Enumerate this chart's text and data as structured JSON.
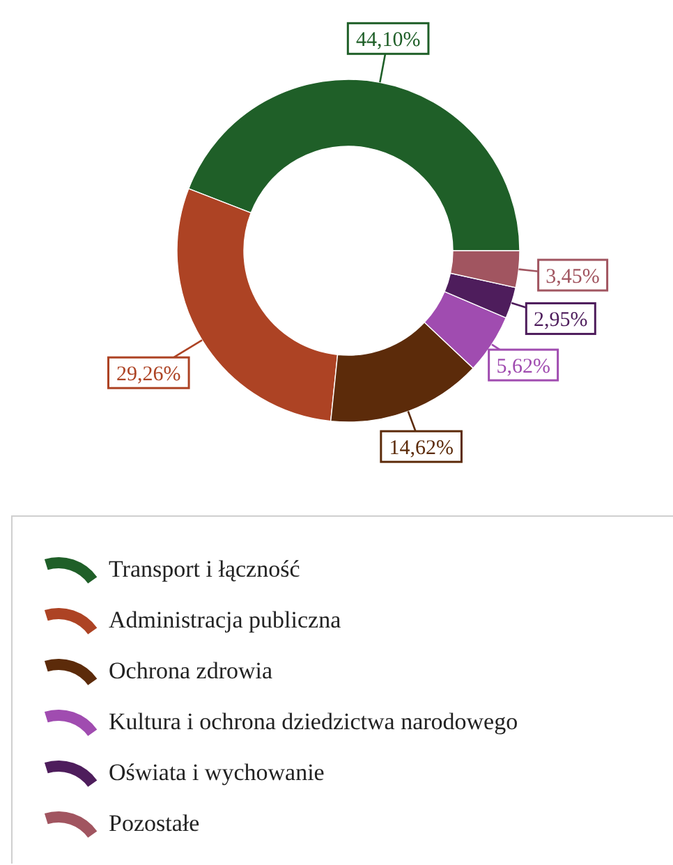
{
  "chart_data": {
    "type": "donut",
    "categories": [
      "Transport i łączność",
      "Administracja publiczna",
      "Ochrona zdrowia",
      "Kultura i ochrona dziedzictwa narodowego",
      "Oświata i wychowanie",
      "Pozostałe"
    ],
    "values": [
      44.1,
      29.26,
      14.62,
      5.62,
      2.95,
      3.45
    ],
    "colors": [
      "#1f5f28",
      "#ad4324",
      "#5c2b0a",
      "#a04cb0",
      "#4e1d5c",
      "#a15560"
    ],
    "value_labels": [
      "44,10%",
      "29,26%",
      "14,62%",
      "5,62%",
      "2,95%",
      "3,45%"
    ],
    "legend": "bottom"
  }
}
